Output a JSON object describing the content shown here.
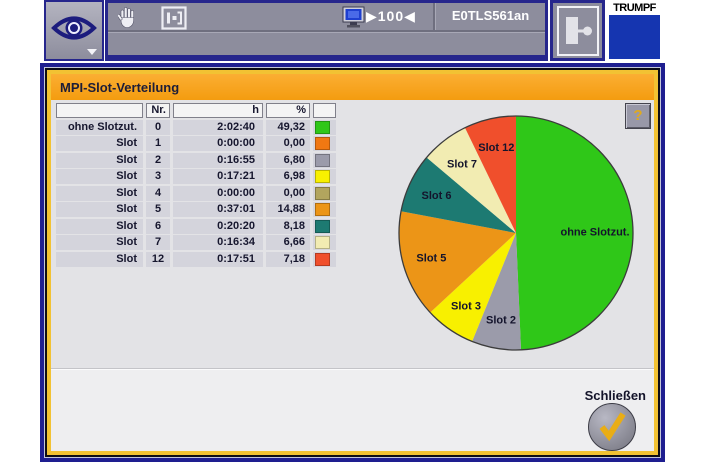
{
  "topbar": {
    "zoom_indicator": "▶100◀",
    "machine_id": "E0TLS561an",
    "logo_text": "TRUMPF",
    "logo_color": "#1535b0"
  },
  "panel": {
    "title": "MPI-Slot-Verteilung",
    "help_label": "?",
    "close_label": "Schließen"
  },
  "table": {
    "headers": {
      "name": "",
      "nr": "Nr.",
      "h": "h",
      "pct": "%",
      "color": ""
    },
    "rows": [
      {
        "name": "ohne Slotzut.",
        "nr": "0",
        "h": "2:02:40",
        "pct": "49,32",
        "color": "#2fc718"
      },
      {
        "name": "Slot",
        "nr": "1",
        "h": "0:00:00",
        "pct": "0,00",
        "color": "#f07812"
      },
      {
        "name": "Slot",
        "nr": "2",
        "h": "0:16:55",
        "pct": "6,80",
        "color": "#9b9baa"
      },
      {
        "name": "Slot",
        "nr": "3",
        "h": "0:17:21",
        "pct": "6,98",
        "color": "#f8f000"
      },
      {
        "name": "Slot",
        "nr": "4",
        "h": "0:00:00",
        "pct": "0,00",
        "color": "#b2a55e"
      },
      {
        "name": "Slot",
        "nr": "5",
        "h": "0:37:01",
        "pct": "14,88",
        "color": "#ec9517"
      },
      {
        "name": "Slot",
        "nr": "6",
        "h": "0:20:20",
        "pct": "8,18",
        "color": "#1d7a72"
      },
      {
        "name": "Slot",
        "nr": "7",
        "h": "0:16:34",
        "pct": "6,66",
        "color": "#f2ecb2"
      },
      {
        "name": "Slot",
        "nr": "12",
        "h": "0:17:51",
        "pct": "7,18",
        "color": "#f04f2c"
      }
    ]
  },
  "chart_data": {
    "type": "pie",
    "title": "MPI-Slot-Verteilung",
    "unit": "percent",
    "start_angle_deg": 0,
    "direction": "clockwise",
    "legend": "labels-on-slices",
    "slices": [
      {
        "label": "ohne Slotzut.",
        "value": 49.32,
        "color": "#2fc718"
      },
      {
        "label": "Slot 1",
        "value": 0.0,
        "color": "#f07812"
      },
      {
        "label": "Slot 2",
        "value": 6.8,
        "color": "#9b9baa"
      },
      {
        "label": "Slot 3",
        "value": 6.98,
        "color": "#f8f000"
      },
      {
        "label": "Slot 4",
        "value": 0.0,
        "color": "#b2a55e"
      },
      {
        "label": "Slot 5",
        "value": 14.88,
        "color": "#ec9517"
      },
      {
        "label": "Slot 6",
        "value": 8.18,
        "color": "#1d7a72"
      },
      {
        "label": "Slot 7",
        "value": 6.66,
        "color": "#f2ecb2"
      },
      {
        "label": "Slot 12",
        "value": 7.18,
        "color": "#f04f2c"
      }
    ]
  }
}
